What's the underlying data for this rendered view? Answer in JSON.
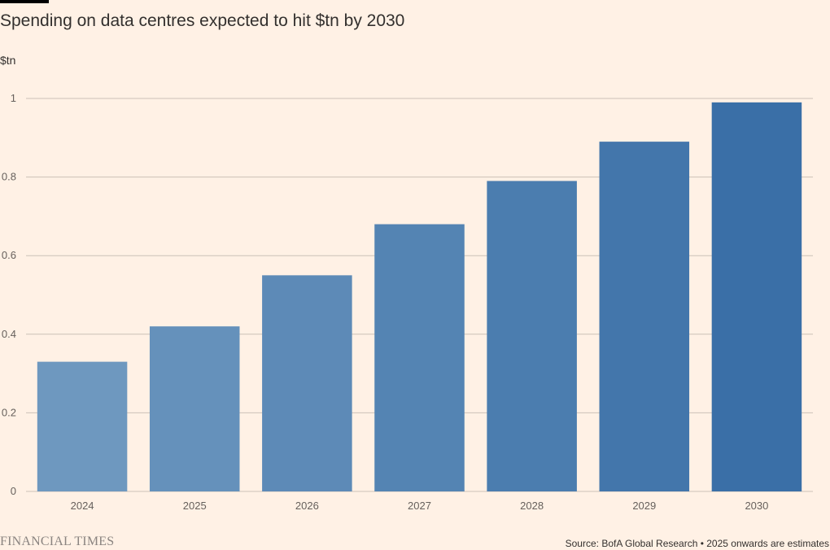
{
  "header": {
    "title": "Spending on data centres expected to hit $tn by 2030",
    "unit": "$tn"
  },
  "footer": {
    "brand": "FINANCIAL TIMES",
    "source": "Source: BofA Global Research • 2025 onwards are estimates"
  },
  "colors": {
    "background": "#fff1e5",
    "bar_light": "#6e98bf",
    "bar_dark": "#3a6fa7",
    "gridline": "#ccc1b7"
  },
  "chart_data": {
    "type": "bar",
    "title": "Spending on data centres expected to hit $tn by 2030",
    "ylabel": "$tn",
    "xlabel": "",
    "categories": [
      "2024",
      "2025",
      "2026",
      "2027",
      "2028",
      "2029",
      "2030"
    ],
    "values": [
      0.33,
      0.42,
      0.55,
      0.68,
      0.79,
      0.89,
      0.99
    ],
    "ylim": [
      0,
      1
    ],
    "yticks": [
      0,
      0.2,
      0.4,
      0.6,
      0.8,
      1
    ],
    "ytick_labels": [
      "0",
      "0.2",
      "0.4",
      "0.6",
      "0.8",
      "1"
    ],
    "grid": true,
    "legend": "none"
  }
}
